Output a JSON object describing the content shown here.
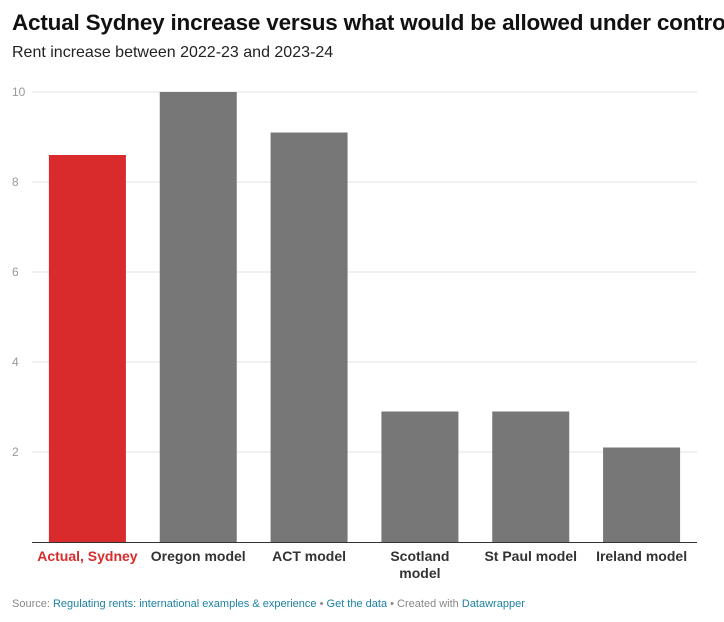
{
  "chart_data": {
    "type": "bar",
    "title": "Actual Sydney increase versus what would be allowed under controls",
    "subtitle": "Rent increase between 2022-23 and 2023-24",
    "categories": [
      "Actual, Sydney",
      "Oregon model",
      "ACT model",
      "Scotland model",
      "St Paul model",
      "Ireland model"
    ],
    "category_lines": [
      [
        "Actual, Sydney"
      ],
      [
        "Oregon model"
      ],
      [
        "ACT model"
      ],
      [
        "Scotland",
        "model"
      ],
      [
        "St Paul model"
      ],
      [
        "Ireland model"
      ]
    ],
    "values": [
      8.6,
      10,
      9.1,
      2.9,
      2.9,
      2.1
    ],
    "ylim": [
      0,
      10
    ],
    "yticks": [
      2,
      4,
      6,
      8,
      10
    ],
    "ytick_labels": [
      "2",
      "4",
      "6",
      "8",
      "10"
    ],
    "xlabel": "",
    "ylabel": "",
    "grid": true,
    "highlight_index": 0,
    "colors": {
      "highlight": "#d92b2b",
      "default": "#777777",
      "grid": "#e3e3e3",
      "axis": "#333333",
      "tick_text": "#999999"
    }
  },
  "footer": {
    "source_label": "Source:",
    "source_link": "Regulating rents: international examples & experience",
    "sep1": "•",
    "data_link": "Get the data",
    "sep2": "•",
    "created_label": "Created with",
    "tool_link": "Datawrapper"
  }
}
